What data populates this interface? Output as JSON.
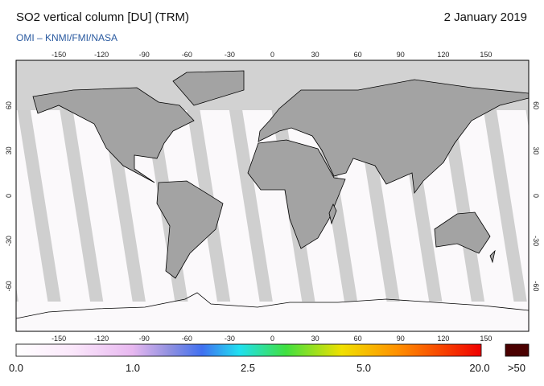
{
  "header": {
    "title": "SO2 vertical column [DU] (TRM)",
    "date": "2 January 2019",
    "source": "OMI  –  KNMI/FMI/NASA"
  },
  "map": {
    "lon_ticks": [
      -150,
      -120,
      -90,
      -60,
      -30,
      0,
      30,
      60,
      90,
      120,
      150
    ],
    "lat_ticks": [
      60,
      30,
      0,
      -30,
      -60
    ]
  },
  "colorbar": {
    "labels": [
      "0.0",
      "1.0",
      "2.5",
      "5.0",
      "20.0"
    ],
    "overflow_label": ">50"
  }
}
